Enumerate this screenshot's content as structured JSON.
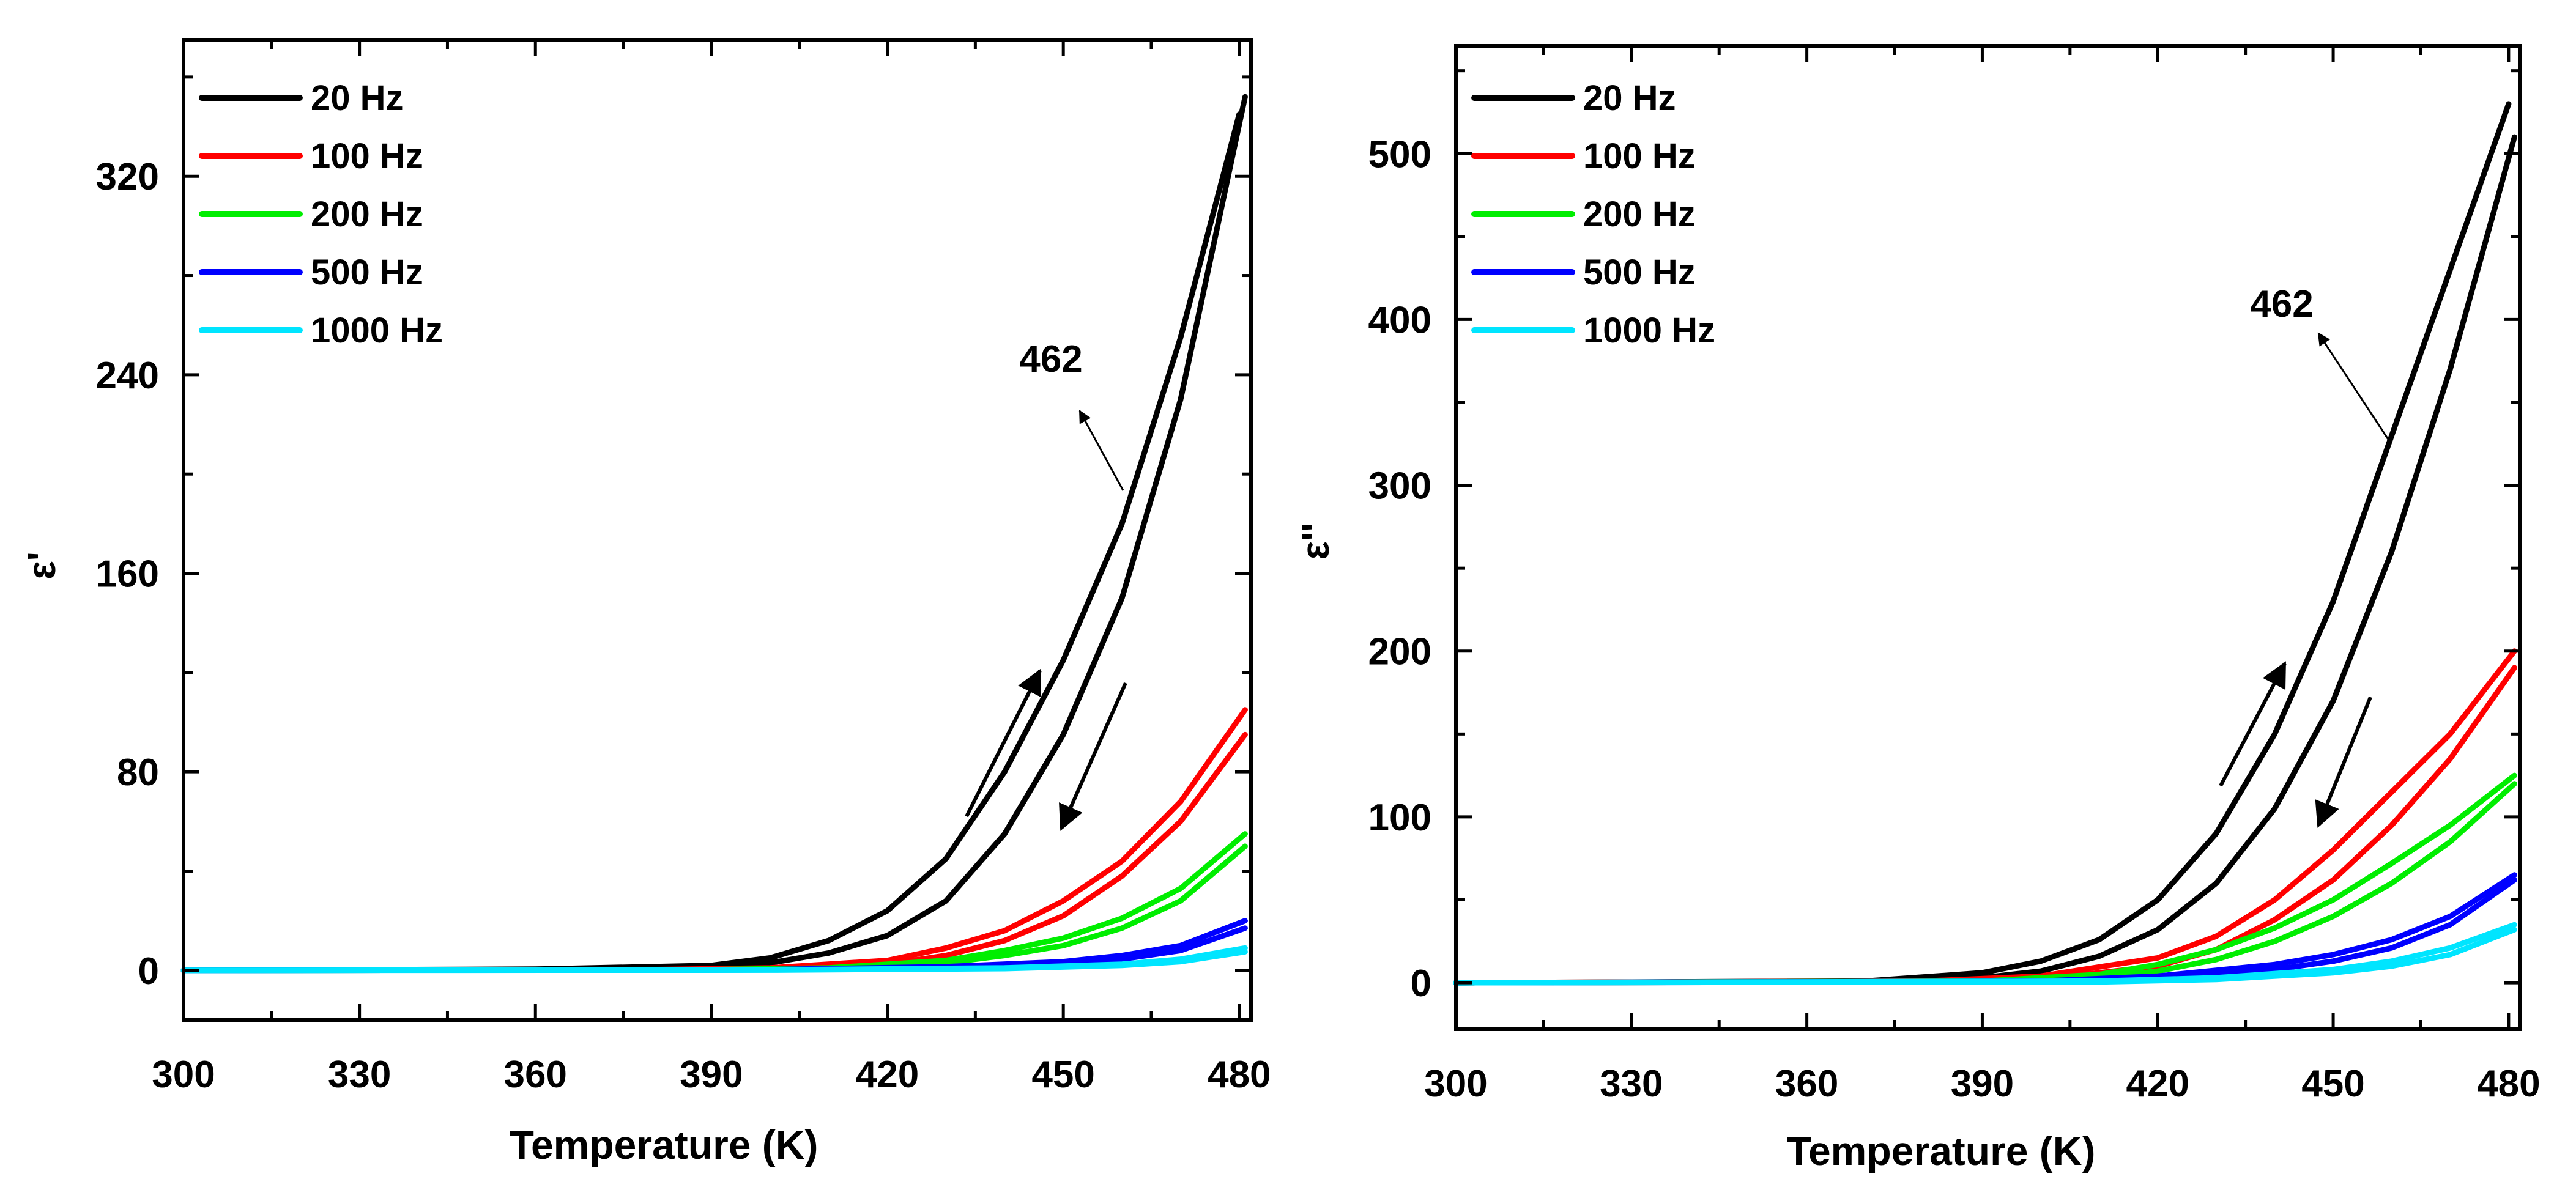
{
  "chart_data": [
    {
      "type": "line",
      "panel": "left",
      "title": "",
      "xlabel": "Temperature (K)",
      "ylabel": "ε'",
      "xlim": [
        300,
        482
      ],
      "ylim": [
        -20,
        375
      ],
      "xticks": [
        300,
        330,
        360,
        390,
        420,
        450,
        480
      ],
      "yticks": [
        0,
        80,
        160,
        240,
        320
      ],
      "legend": "top-left",
      "annotation": {
        "text": "462",
        "x": 462,
        "y": 184
      },
      "series": [
        {
          "name": "20 Hz",
          "color": "#000000",
          "heating": {
            "x": [
              300,
              360,
              390,
              400,
              410,
              420,
              430,
              440,
              450,
              460,
              470,
              480
            ],
            "y": [
              0,
              0.5,
              2,
              5,
              12,
              24,
              45,
              80,
              125,
              180,
              255,
              345
            ]
          },
          "cooling": {
            "x": [
              300,
              360,
              390,
              400,
              410,
              420,
              430,
              440,
              450,
              460,
              470,
              481
            ],
            "y": [
              0,
              0.3,
              1,
              3,
              7,
              14,
              28,
              55,
              95,
              150,
              230,
              352
            ]
          }
        },
        {
          "name": "100 Hz",
          "color": "#ff0000",
          "heating": {
            "x": [
              300,
              380,
              400,
              420,
              430,
              440,
              450,
              460,
              470,
              481
            ],
            "y": [
              0,
              0.3,
              1,
              4,
              9,
              16,
              28,
              44,
              68,
              105
            ]
          },
          "cooling": {
            "x": [
              300,
              380,
              400,
              420,
              430,
              440,
              450,
              460,
              470,
              481
            ],
            "y": [
              0,
              0.2,
              0.6,
              2.5,
              6,
              12,
              22,
              38,
              60,
              95
            ]
          }
        },
        {
          "name": "200 Hz",
          "color": "#00ee00",
          "heating": {
            "x": [
              300,
              390,
              410,
              430,
              440,
              450,
              460,
              470,
              481
            ],
            "y": [
              0,
              0.3,
              1,
              4,
              8,
              13,
              21,
              33,
              55
            ]
          },
          "cooling": {
            "x": [
              300,
              390,
              410,
              430,
              440,
              450,
              460,
              470,
              481
            ],
            "y": [
              0,
              0.2,
              0.7,
              3,
              6,
              10,
              17,
              28,
              50
            ]
          }
        },
        {
          "name": "500 Hz",
          "color": "#0000ff",
          "heating": {
            "x": [
              300,
              400,
              430,
              450,
              460,
              470,
              481
            ],
            "y": [
              0,
              0.3,
              1.5,
              3.5,
              6,
              10,
              20
            ]
          },
          "cooling": {
            "x": [
              300,
              400,
              430,
              450,
              460,
              470,
              481
            ],
            "y": [
              0,
              0.2,
              1,
              2.5,
              4.5,
              8,
              17
            ]
          }
        },
        {
          "name": "1000 Hz",
          "color": "#00e5ff",
          "heating": {
            "x": [
              300,
              400,
              440,
              460,
              470,
              481
            ],
            "y": [
              0,
              0.2,
              1,
              2.5,
              4.5,
              9
            ]
          },
          "cooling": {
            "x": [
              300,
              400,
              440,
              460,
              470,
              481
            ],
            "y": [
              0,
              0.1,
              0.7,
              2,
              3.5,
              7.5
            ]
          }
        }
      ]
    },
    {
      "type": "line",
      "panel": "right",
      "title": "",
      "xlabel": "Temperature (K)",
      "ylabel": "ε''",
      "xlim": [
        300,
        482
      ],
      "ylim": [
        -28,
        565
      ],
      "xticks": [
        300,
        330,
        360,
        390,
        420,
        450,
        480
      ],
      "yticks": [
        0,
        100,
        200,
        300,
        400,
        500
      ],
      "legend": "top-left",
      "annotation": {
        "text": "462",
        "x": 462,
        "y": 332
      },
      "series": [
        {
          "name": "20 Hz",
          "color": "#000000",
          "heating": {
            "x": [
              300,
              370,
              390,
              400,
              410,
              420,
              430,
              440,
              450,
              460,
              470,
              480
            ],
            "y": [
              0,
              1,
              6,
              13,
              26,
              50,
              90,
              150,
              230,
              330,
              430,
              530
            ]
          },
          "cooling": {
            "x": [
              300,
              370,
              390,
              400,
              410,
              420,
              430,
              440,
              450,
              460,
              470,
              481
            ],
            "y": [
              0,
              0.5,
              3,
              7,
              16,
              32,
              60,
              105,
              170,
              260,
              370,
              510
            ]
          }
        },
        {
          "name": "100 Hz",
          "color": "#ff0000",
          "heating": {
            "x": [
              300,
              380,
              400,
              420,
              430,
              440,
              450,
              460,
              470,
              481
            ],
            "y": [
              0,
              1,
              4,
              15,
              28,
              50,
              80,
              115,
              150,
              200
            ]
          },
          "cooling": {
            "x": [
              300,
              380,
              400,
              420,
              430,
              440,
              450,
              460,
              470,
              481
            ],
            "y": [
              0,
              0.5,
              2,
              10,
              20,
              38,
              62,
              95,
              135,
              190
            ]
          }
        },
        {
          "name": "200 Hz",
          "color": "#00ee00",
          "heating": {
            "x": [
              300,
              390,
              410,
              420,
              430,
              440,
              450,
              460,
              470,
              481
            ],
            "y": [
              0,
              1,
              5,
              11,
              20,
              33,
              50,
              72,
              95,
              125
            ]
          },
          "cooling": {
            "x": [
              300,
              390,
              410,
              420,
              430,
              440,
              450,
              460,
              470,
              481
            ],
            "y": [
              0,
              0.5,
              3,
              7,
              14,
              25,
              40,
              60,
              85,
              120
            ]
          }
        },
        {
          "name": "500 Hz",
          "color": "#0000ff",
          "heating": {
            "x": [
              300,
              400,
              420,
              440,
              450,
              460,
              470,
              481
            ],
            "y": [
              0,
              1,
              4,
              11,
              17,
              26,
              40,
              65
            ]
          },
          "cooling": {
            "x": [
              300,
              400,
              420,
              440,
              450,
              460,
              470,
              481
            ],
            "y": [
              0,
              0.5,
              2.5,
              8,
              13,
              21,
              35,
              62
            ]
          }
        },
        {
          "name": "1000 Hz",
          "color": "#00e5ff",
          "heating": {
            "x": [
              300,
              410,
              430,
              450,
              460,
              470,
              481
            ],
            "y": [
              0,
              1,
              3,
              8,
              13,
              21,
              35
            ]
          },
          "cooling": {
            "x": [
              300,
              410,
              430,
              450,
              460,
              470,
              481
            ],
            "y": [
              0,
              0.5,
              2,
              6,
              10,
              17,
              32
            ]
          }
        }
      ]
    }
  ]
}
